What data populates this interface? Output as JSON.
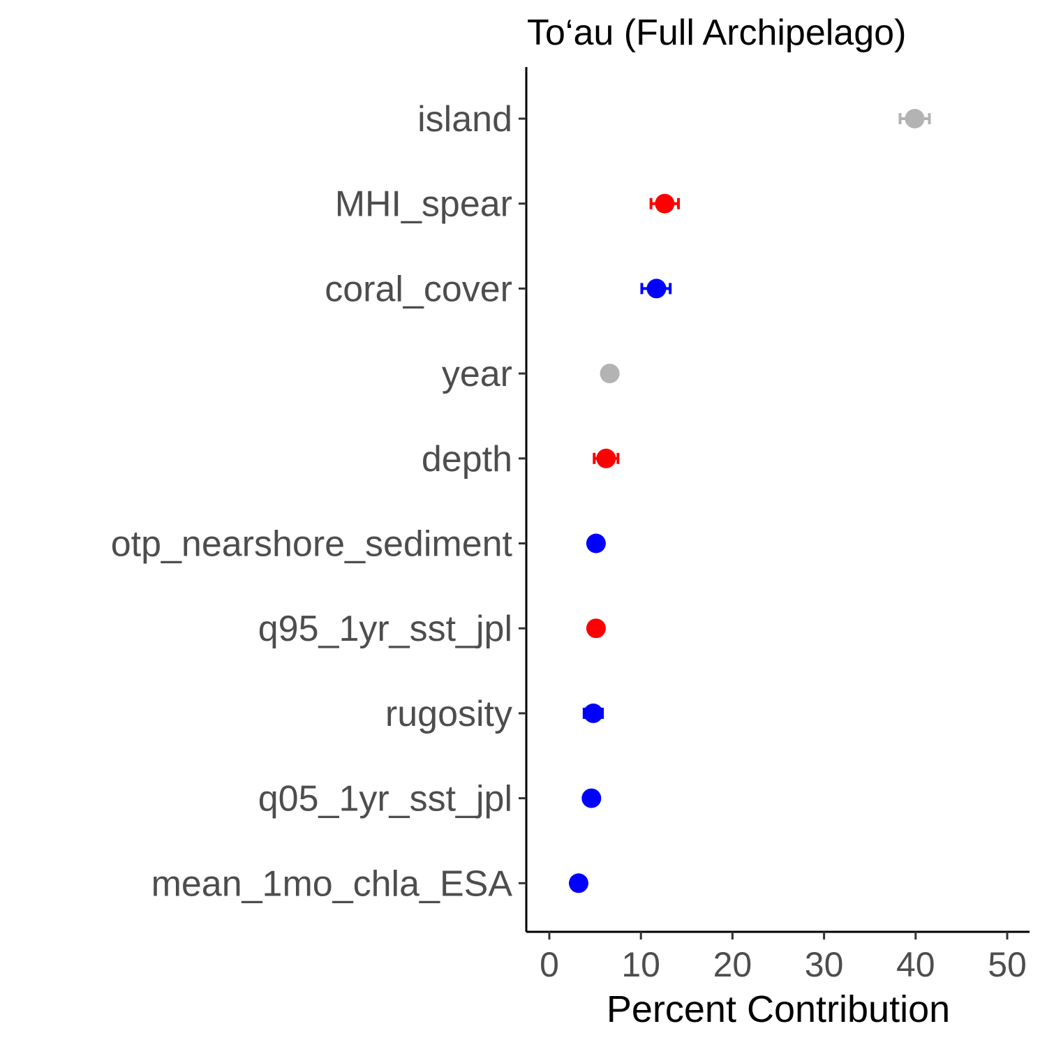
{
  "chart_data": {
    "type": "scatter",
    "title": "To‘au (Full Archipelago)",
    "xlabel": "Percent Contribution",
    "ylabel": "",
    "xlim": [
      -2.5,
      52.5
    ],
    "xticks": [
      0,
      10,
      20,
      30,
      40,
      50
    ],
    "xtick_labels": [
      "0",
      "10",
      "20",
      "30",
      "40",
      "50"
    ],
    "grid": false,
    "categories": [
      "island",
      "MHI_spear",
      "coral_cover",
      "year",
      "depth",
      "otp_nearshore_sediment",
      "q95_1yr_sst_jpl",
      "rugosity",
      "q05_1yr_sst_jpl",
      "mean_1mo_chla_ESA"
    ],
    "values": [
      39.9,
      12.6,
      11.7,
      6.6,
      6.2,
      5.1,
      5.1,
      4.8,
      4.6,
      3.2
    ],
    "error_low": [
      38.3,
      11.1,
      10.1,
      6.0,
      4.9,
      5.0,
      5.0,
      3.8,
      4.5,
      3.1
    ],
    "error_high": [
      41.5,
      14.1,
      13.2,
      7.2,
      7.5,
      5.2,
      5.2,
      5.8,
      4.7,
      3.3
    ],
    "point_colors": [
      "#b3b3b3",
      "#ff0000",
      "#0000ff",
      "#b3b3b3",
      "#ff0000",
      "#0000ff",
      "#ff0000",
      "#0000ff",
      "#0000ff",
      "#0000ff"
    ]
  }
}
